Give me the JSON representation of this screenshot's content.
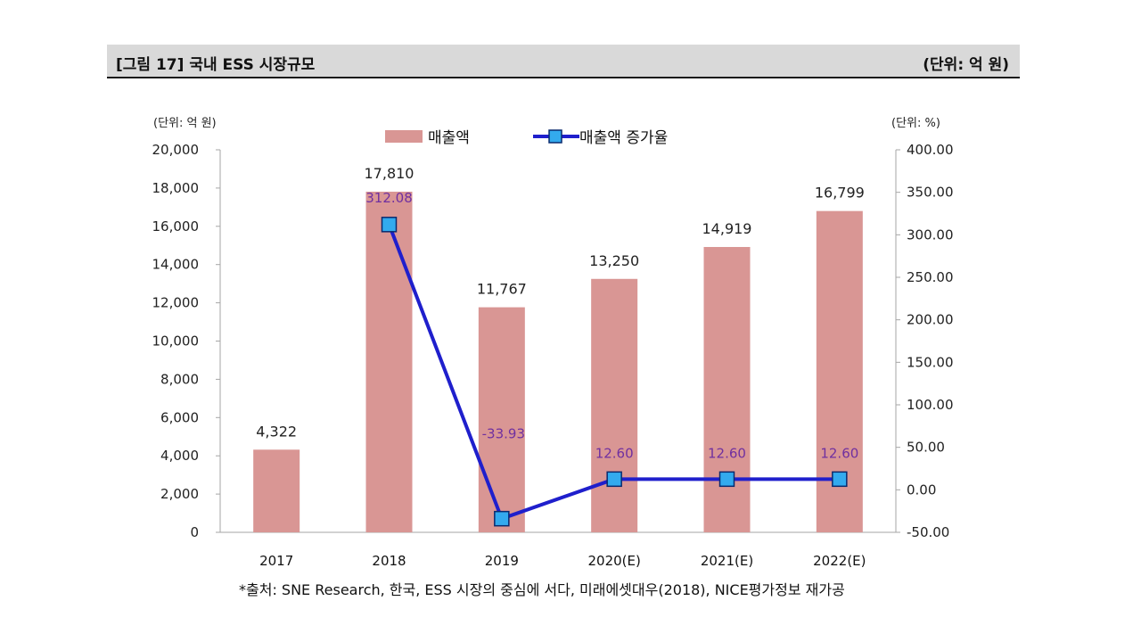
{
  "header": {
    "title": "[그림 17] 국내 ESS 시장규모",
    "unit": "(단위: 억 원)"
  },
  "chart_data": {
    "type": "bar",
    "categories": [
      "2017",
      "2018",
      "2019",
      "2020(E)",
      "2021(E)",
      "2022(E)"
    ],
    "series": [
      {
        "name": "매출액",
        "type": "bar",
        "axis": "left",
        "color": "#d99694",
        "values": [
          4322,
          17810,
          11767,
          13250,
          14919,
          16799
        ],
        "labels": [
          "4,322",
          "17,810",
          "11,767",
          "13,250",
          "14,919",
          "16,799"
        ]
      },
      {
        "name": "매출액 증가율",
        "type": "line",
        "axis": "right",
        "color": "#1f1fcc",
        "marker_color": "#33aaee",
        "values": [
          null,
          312.08,
          -33.93,
          12.6,
          12.6,
          12.6
        ],
        "labels": [
          "",
          "312.08",
          "-33.93",
          "12.60",
          "12.60",
          "12.60"
        ]
      }
    ],
    "left_axis": {
      "unit": "(단위: 억 원)",
      "ylim": [
        0,
        20000
      ],
      "ticks": [
        "0",
        "2,000",
        "4,000",
        "6,000",
        "8,000",
        "10,000",
        "12,000",
        "14,000",
        "16,000",
        "18,000",
        "20,000"
      ]
    },
    "right_axis": {
      "unit": "(단위: %)",
      "ylim": [
        -50,
        400
      ],
      "ticks": [
        "-50.00",
        "0.00",
        "50.00",
        "100.00",
        "150.00",
        "200.00",
        "250.00",
        "300.00",
        "350.00",
        "400.00"
      ]
    },
    "legend": {
      "position": "top-center"
    },
    "grid": false
  },
  "source": "*출처: SNE Research, 한국, ESS 시장의 중심에 서다, 미래에셋대우(2018), NICE평가정보 재가공"
}
